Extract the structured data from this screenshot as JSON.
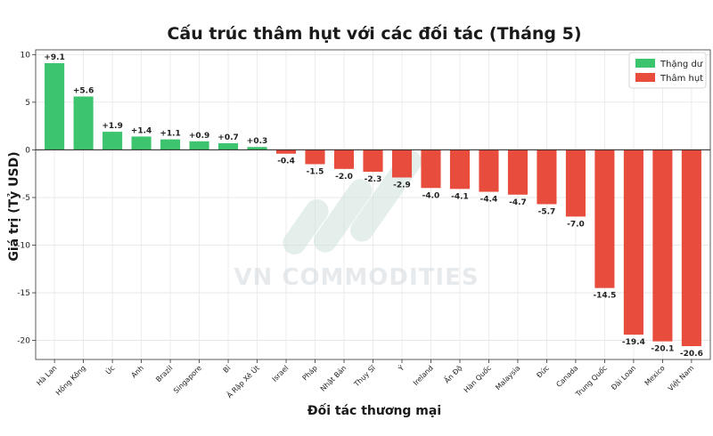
{
  "chart_data": {
    "type": "bar",
    "title": "Cấu trúc thâm hụt với các đối tác (Tháng 5)",
    "xlabel": "Đối tác thương mại",
    "ylabel": "Giá trị (Tỷ USD)",
    "ylim": [
      -22,
      10.5
    ],
    "yticks": [
      10,
      5,
      0,
      -5,
      -10,
      -15,
      -20
    ],
    "grid": true,
    "legend_position": "top-right",
    "categories": [
      "Hà Lan",
      "Hồng Kông",
      "Úc",
      "Anh",
      "Brazil",
      "Singapore",
      "Bỉ",
      "Ả Rập Xê Út",
      "Israel",
      "Pháp",
      "Nhật Bản",
      "Thụy Sĩ",
      "Ý",
      "Ireland",
      "Ấn Độ",
      "Hàn Quốc",
      "Malaysia",
      "Đức",
      "Canada",
      "Trung Quốc",
      "Đài Loan",
      "Mexico",
      "Việt Nam"
    ],
    "values": [
      9.1,
      5.6,
      1.9,
      1.4,
      1.1,
      0.9,
      0.7,
      0.3,
      -0.4,
      -1.5,
      -2.0,
      -2.3,
      -2.9,
      -4.0,
      -4.1,
      -4.4,
      -4.7,
      -5.7,
      -7.0,
      -14.5,
      -19.4,
      -20.1,
      -20.6
    ],
    "data_labels": [
      "+9.1",
      "+5.6",
      "+1.9",
      "+1.4",
      "+1.1",
      "+0.9",
      "+0.7",
      "+0.3",
      "-0.4",
      "-1.5",
      "-2.0",
      "-2.3",
      "-2.9",
      "-4.0",
      "-4.1",
      "-4.4",
      "-4.7",
      "-5.7",
      "-7.0",
      "-14.5",
      "-19.4",
      "-20.1",
      "-20.6"
    ],
    "legend": [
      {
        "name": "Thặng dư",
        "color": "#3cc46e"
      },
      {
        "name": "Thâm hụt",
        "color": "#e74c3c"
      }
    ],
    "colors": {
      "positive": "#3cc46e",
      "negative": "#e74c3c"
    }
  },
  "watermark": {
    "text": "VN COMMODITIES"
  }
}
